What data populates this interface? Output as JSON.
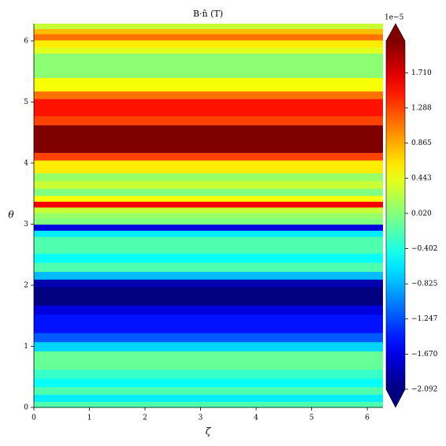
{
  "chart_data": {
    "type": "heatmap",
    "title": "B·n̂ (T)",
    "x_label": "ζ",
    "y_label": "θ",
    "xlim": [
      0,
      6.283
    ],
    "ylim": [
      0,
      6.283
    ],
    "xticks": [
      0,
      1,
      2,
      3,
      4,
      5,
      6
    ],
    "yticks": [
      0,
      1,
      2,
      3,
      4,
      5,
      6
    ],
    "y": [
      0.05,
      0.15,
      0.28,
      0.4,
      0.55,
      0.7,
      0.85,
      1.0,
      1.15,
      1.3,
      1.45,
      1.6,
      1.75,
      1.9,
      2.05,
      2.15,
      2.3,
      2.45,
      2.6,
      2.75,
      2.85,
      2.95,
      3.05,
      3.15,
      3.23,
      3.33,
      3.42,
      3.52,
      3.65,
      3.78,
      3.9,
      4.0,
      4.1,
      4.25,
      4.4,
      4.55,
      4.7,
      4.85,
      5.0,
      5.11,
      5.25,
      5.35,
      5.45,
      5.6,
      5.75,
      5.85,
      5.95,
      6.08,
      6.15,
      6.25
    ],
    "values": [
      -0.2,
      -0.6,
      -0.2,
      -0.5,
      -0.3,
      -0.1,
      -0.1,
      -0.7,
      -1.2,
      -1.5,
      -1.5,
      -1.7,
      -2.1,
      -2.1,
      -1.9,
      -0.8,
      -0.2,
      -0.5,
      -0.2,
      -0.2,
      -0.6,
      -1.7,
      0.0,
      0.1,
      0.3,
      1.6,
      0.5,
      0.0,
      0.3,
      0.1,
      0.6,
      0.6,
      1.3,
      2.1,
      2.1,
      2.1,
      1.3,
      1.5,
      1.5,
      1.1,
      0.5,
      0.5,
      0.05,
      0.05,
      0.05,
      0.4,
      0.6,
      1.1,
      0.8,
      0.3
    ],
    "colormap": "jet",
    "clim": [
      -2.092,
      2.092
    ],
    "colorbar_offset": "1e−5",
    "colorbar_ticks": [
      {
        "value": -2.092,
        "label": "−2.092"
      },
      {
        "value": -1.67,
        "label": "−1.670"
      },
      {
        "value": -1.247,
        "label": "−1.247"
      },
      {
        "value": -0.825,
        "label": "−0.825"
      },
      {
        "value": -0.402,
        "label": "−0.402"
      },
      {
        "value": 0.02,
        "label": "0.020"
      },
      {
        "value": 0.443,
        "label": "0.443"
      },
      {
        "value": 0.865,
        "label": "0.865"
      },
      {
        "value": 1.288,
        "label": "1.288"
      },
      {
        "value": 1.71,
        "label": "1.710"
      }
    ]
  }
}
